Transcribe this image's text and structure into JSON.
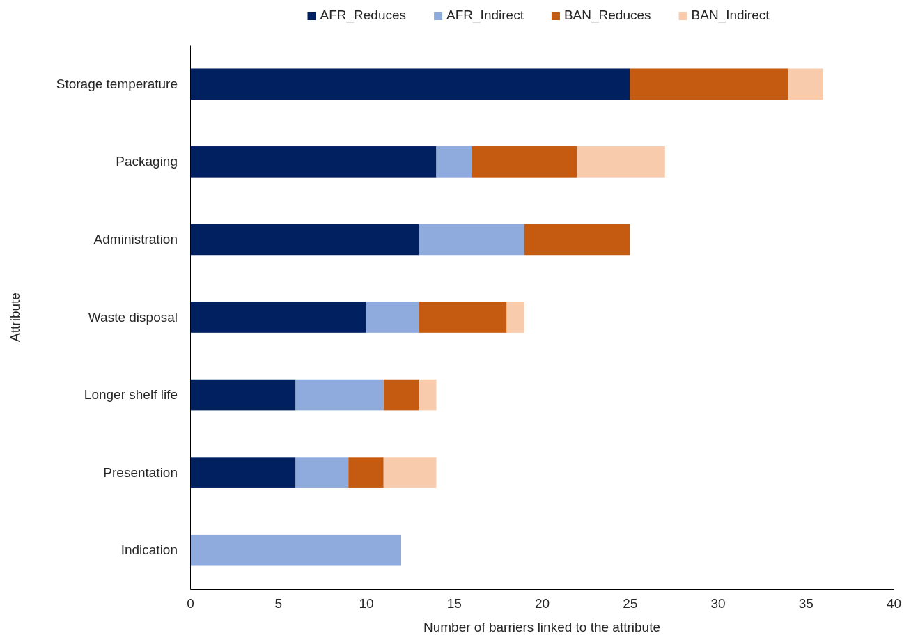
{
  "chart_data": {
    "type": "bar",
    "orientation": "horizontal",
    "stacked": true,
    "xlabel": "Number of barriers  linked to the attribute",
    "ylabel": "Attribute",
    "categories": [
      "Storage temperature",
      "Packaging",
      "Administration",
      "Waste disposal",
      "Longer shelf life",
      "Presentation",
      "Indication"
    ],
    "series": [
      {
        "name": "AFR_Reduces",
        "color": "#002060",
        "values": [
          25,
          14,
          13,
          10,
          6,
          6,
          0
        ]
      },
      {
        "name": "AFR_Indirect",
        "color": "#8faadc",
        "values": [
          0,
          2,
          6,
          3,
          5,
          3,
          12
        ]
      },
      {
        "name": "BAN_Reduces",
        "color": "#c55a11",
        "values": [
          9,
          6,
          6,
          5,
          2,
          2,
          0
        ]
      },
      {
        "name": "BAN_Indirect",
        "color": "#f8cbad",
        "values": [
          2,
          5,
          0,
          1,
          1,
          3,
          0
        ]
      }
    ],
    "xlim": [
      0,
      40
    ],
    "xticks": [
      0,
      5,
      10,
      15,
      20,
      25,
      30,
      35,
      40
    ],
    "grid": false,
    "legend": "top"
  }
}
